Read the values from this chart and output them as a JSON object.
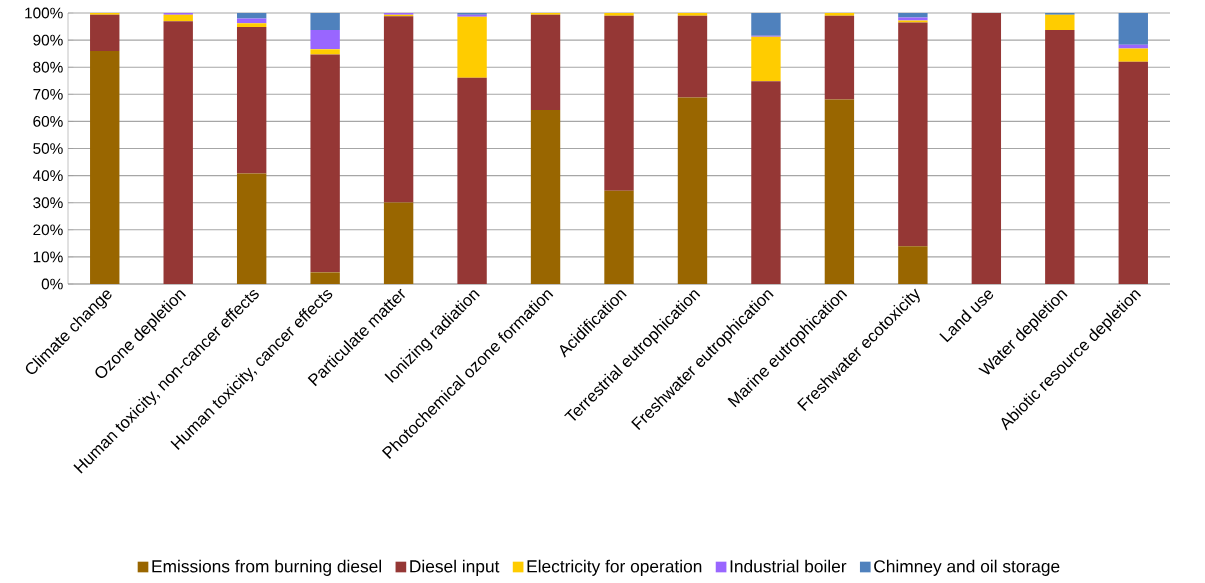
{
  "chart_data": {
    "type": "bar",
    "stacked": true,
    "categories": [
      "Climate change",
      "Ozone depletion",
      "Human toxicity, non-cancer effects",
      "Human toxicity, cancer effects",
      "Particulate matter",
      "Ionizing radiation",
      "Photochemical ozone formation",
      "Acidification",
      "Terrestrial eutrophication",
      "Freshwater eutrophication",
      "Marine eutrophication",
      "Freshwater ecotoxicity",
      "Land use",
      "Water depletion",
      "Abiotic resource depletion"
    ],
    "series": [
      {
        "name": "Emissions from burning diesel",
        "color": "#996600",
        "values": [
          86,
          0,
          40.8,
          4.3,
          30.1,
          0,
          64.2,
          34.4,
          68.8,
          0,
          68.1,
          13.9,
          0,
          0,
          0
        ]
      },
      {
        "name": "Diesel input",
        "color": "#953735",
        "values": [
          13.4,
          97,
          54,
          80.4,
          68.7,
          76.1,
          35.2,
          64.6,
          30.2,
          74.8,
          30.9,
          82.6,
          100,
          93.7,
          82
        ]
      },
      {
        "name": "Electricity for operation",
        "color": "#ffcc00",
        "values": [
          0.6,
          2.4,
          1.4,
          1.9,
          0.6,
          22.5,
          0.6,
          1,
          1,
          16.4,
          1,
          0.7,
          0,
          5.7,
          4.9
        ]
      },
      {
        "name": "Industrial boiler",
        "color": "#9966ff",
        "values": [
          0,
          0.6,
          1.8,
          7.1,
          0.6,
          0.8,
          0,
          0,
          0,
          0.4,
          0,
          1.1,
          0,
          0,
          1.4
        ]
      },
      {
        "name": "Chimney and oil storage",
        "color": "#4f81bd",
        "values": [
          0,
          0,
          2,
          6.3,
          0,
          0.6,
          0,
          0,
          0,
          8.4,
          0,
          1.7,
          0,
          0.6,
          11.7
        ]
      }
    ],
    "ylim": [
      0,
      100
    ],
    "yticks": [
      {
        "value": 0,
        "label": "0%"
      },
      {
        "value": 10,
        "label": "10%"
      },
      {
        "value": 20,
        "label": "20%"
      },
      {
        "value": 30,
        "label": "30%"
      },
      {
        "value": 40,
        "label": "40%"
      },
      {
        "value": 50,
        "label": "50%"
      },
      {
        "value": 60,
        "label": "60%"
      },
      {
        "value": 70,
        "label": "70%"
      },
      {
        "value": 80,
        "label": "80%"
      },
      {
        "value": 90,
        "label": "90%"
      },
      {
        "value": 100,
        "label": "100%"
      }
    ],
    "grid": "y",
    "legend": "bottom"
  }
}
